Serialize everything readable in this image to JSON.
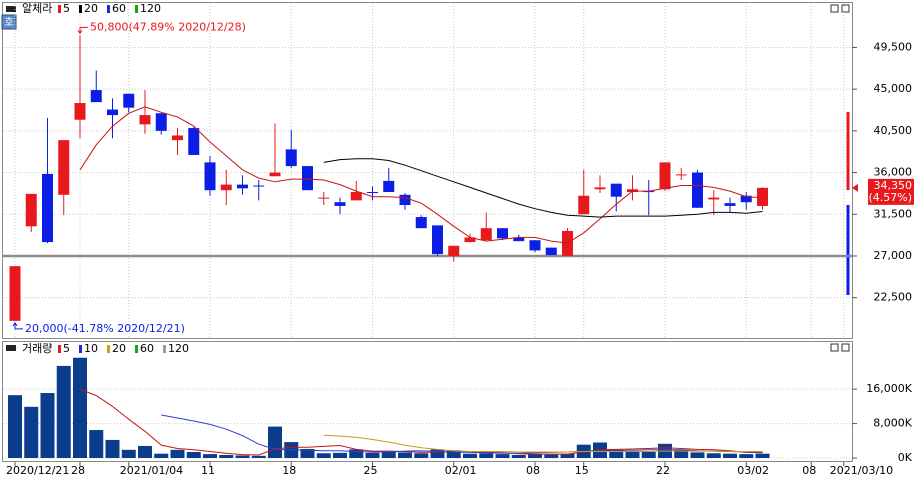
{
  "icon_label": "호",
  "chart_data": [
    {
      "type": "candlestick",
      "name": "알체라",
      "categories": [
        "2020/12/21",
        null,
        null,
        null,
        "28",
        null,
        null,
        "2021/01/04",
        null,
        null,
        null,
        null,
        "11",
        null,
        null,
        null,
        null,
        "18",
        null,
        null,
        null,
        null,
        "25",
        null,
        null,
        null,
        null,
        "02/01",
        null,
        null,
        null,
        null,
        "08",
        null,
        null,
        "15",
        null,
        null,
        null,
        null,
        "22",
        null,
        null,
        null,
        null,
        "03/02",
        null,
        null,
        null,
        "08",
        null,
        "2021/03/10"
      ],
      "open": [
        20000,
        30200,
        35850,
        33600,
        41700,
        44900,
        42800,
        44500,
        41200,
        42400,
        39500,
        40800,
        37100,
        34100,
        34700,
        34600,
        35600,
        38500,
        36700,
        33200,
        32800,
        33000,
        33900,
        35100,
        33600,
        31200,
        30300,
        27000,
        28500,
        28700,
        30000,
        29000,
        28700,
        27900,
        27000,
        31500,
        34200,
        34800,
        33900,
        34000,
        34200,
        35700,
        36000,
        33100,
        32700,
        33500,
        32400,
        null,
        null,
        null,
        null,
        null
      ],
      "high": [
        25900,
        33700,
        41900,
        39500,
        50800,
        47000,
        44000,
        44500,
        44900,
        42400,
        40800,
        40900,
        37800,
        36300,
        35700,
        35200,
        41300,
        40600,
        36700,
        33900,
        33300,
        35100,
        34500,
        36500,
        33800,
        31400,
        30300,
        28100,
        29400,
        31700,
        30000,
        29300,
        28700,
        27900,
        30000,
        36300,
        35700,
        34800,
        35700,
        35200,
        37100,
        36500,
        36300,
        34100,
        33300,
        33900,
        34400,
        null,
        null,
        null,
        null,
        null
      ],
      "low": [
        20000,
        29600,
        28400,
        31400,
        39700,
        43600,
        39700,
        42500,
        40200,
        40100,
        37900,
        37900,
        33500,
        32500,
        33600,
        33000,
        35600,
        36500,
        34100,
        32500,
        31500,
        33000,
        33000,
        33900,
        32000,
        30000,
        27000,
        26400,
        28500,
        28700,
        28700,
        28600,
        27400,
        27100,
        27000,
        31500,
        33800,
        31800,
        33000,
        31400,
        34000,
        35200,
        32200,
        31400,
        31700,
        32000,
        32000,
        null,
        null,
        null,
        null,
        null
      ],
      "close": [
        25900,
        33700,
        28500,
        39500,
        43500,
        43600,
        42200,
        43000,
        42200,
        40500,
        40000,
        37900,
        34100,
        34700,
        34300,
        34500,
        36000,
        36700,
        34100,
        33300,
        32400,
        33900,
        33800,
        33900,
        32500,
        30000,
        27200,
        28100,
        29000,
        30000,
        28900,
        28600,
        27600,
        27100,
        29700,
        33500,
        34400,
        33400,
        34200,
        33900,
        37100,
        35800,
        32200,
        33300,
        32400,
        32800,
        34350,
        null,
        null,
        null,
        null,
        null
      ],
      "up_color": "#e8191c",
      "down_color": "#0a1ee6",
      "legend": [
        {
          "name": "5",
          "color": "#e8191c"
        },
        {
          "name": "20",
          "color": "#000000"
        },
        {
          "name": "60",
          "color": "#1a2bd0"
        },
        {
          "name": "120",
          "color": "#19a319"
        }
      ],
      "ma_lines": [
        {
          "color": "#c81414",
          "values": [
            null,
            null,
            null,
            null,
            36300,
            39000,
            41000,
            42400,
            43100,
            42500,
            42000,
            41000,
            39300,
            37800,
            36300,
            35400,
            35000,
            35300,
            35300,
            35200,
            34700,
            34000,
            33400,
            33400,
            33300,
            32700,
            31500,
            30200,
            29000,
            28600,
            28800,
            29000,
            29000,
            28600,
            28400,
            29500,
            31000,
            32600,
            34000,
            34000,
            34300,
            34600,
            34600,
            34400,
            34000,
            33400,
            33300,
            null,
            null,
            null,
            null,
            null
          ]
        },
        {
          "color": "#000000",
          "values": [
            null,
            null,
            null,
            null,
            null,
            null,
            null,
            null,
            null,
            null,
            null,
            null,
            null,
            null,
            null,
            null,
            null,
            null,
            null,
            37100,
            37400,
            37500,
            37500,
            37300,
            36800,
            36200,
            35600,
            35000,
            34400,
            33800,
            33200,
            32600,
            32100,
            31700,
            31400,
            31300,
            31200,
            31300,
            31300,
            31300,
            31300,
            31400,
            31500,
            31700,
            31700,
            31600,
            31800,
            null,
            null,
            null,
            null,
            null
          ]
        }
      ],
      "reference_line": 27000,
      "ylim": [
        18150,
        54080
      ],
      "yticks": [
        {
          "value": 49500,
          "label": "49,500"
        },
        {
          "value": 45000,
          "label": "45,000"
        },
        {
          "value": 40500,
          "label": "40,500"
        },
        {
          "value": 36000,
          "label": "36,000"
        },
        {
          "value": 31500,
          "label": "31,500"
        },
        {
          "value": 27000,
          "label": "27,000"
        },
        {
          "value": 22500,
          "label": "22,500"
        }
      ],
      "annotations": [
        {
          "text": "50,800(47.89% 2020/12/28)",
          "value": 50800
        },
        {
          "text": "20,000(-41.78% 2020/12/21)",
          "value": 20000
        }
      ],
      "current_price": {
        "value": 34350,
        "label": "34,350",
        "change": "(4.57%)"
      }
    },
    {
      "type": "bar",
      "name": "거래량",
      "color": "#0b3d8c",
      "values": [
        14600,
        11900,
        15100,
        21400,
        23300,
        6500,
        4200,
        1900,
        2800,
        1000,
        1900,
        1400,
        900,
        700,
        600,
        500,
        7300,
        3700,
        2100,
        1100,
        1200,
        2000,
        1200,
        1600,
        1300,
        1100,
        2000,
        1800,
        1000,
        1100,
        900,
        700,
        1000,
        800,
        1000,
        3100,
        3600,
        1800,
        1500,
        1400,
        3300,
        1900,
        1300,
        1100,
        1000,
        900,
        1000,
        null,
        null,
        null,
        null,
        null
      ],
      "legend": [
        {
          "name": "5",
          "color": "#e8191c"
        },
        {
          "name": "10",
          "color": "#1a2bd0"
        },
        {
          "name": "20",
          "color": "#d4a017"
        },
        {
          "name": "60",
          "color": "#19a319"
        },
        {
          "name": "120",
          "color": "#9a9a9a"
        }
      ],
      "ma_lines": [
        {
          "color": "#c81414",
          "values": [
            null,
            null,
            null,
            null,
            16000,
            14500,
            12000,
            9000,
            6200,
            3000,
            2200,
            1900,
            1500,
            1100,
            800,
            700,
            2100,
            2500,
            2500,
            2700,
            2900,
            2000,
            1600,
            1600,
            1500,
            1300,
            1400,
            1500,
            1400,
            1300,
            1200,
            1000,
            900,
            900,
            900,
            1400,
            1900,
            2000,
            2100,
            2200,
            2400,
            2200,
            2000,
            1900,
            1700,
            1300,
            1200,
            null,
            null,
            null,
            null,
            null
          ]
        },
        {
          "color": "#3040d0",
          "values": [
            null,
            null,
            null,
            null,
            null,
            null,
            null,
            null,
            null,
            10000,
            9300,
            8600,
            7800,
            6700,
            5200,
            3200,
            2000,
            1900,
            1800,
            1700,
            1700,
            1500,
            1400,
            1400,
            1600,
            1700,
            1500,
            1400,
            1300,
            1200,
            1100,
            1100,
            1200,
            1300,
            1400,
            1600,
            1700,
            1800,
            1800,
            1900,
            1900,
            1900,
            1700,
            1600,
            1500,
            1400,
            1300,
            null,
            null,
            null,
            null,
            null
          ]
        },
        {
          "color": "#c89a20",
          "values": [
            null,
            null,
            null,
            null,
            null,
            null,
            null,
            null,
            null,
            null,
            null,
            null,
            null,
            null,
            null,
            null,
            null,
            null,
            null,
            5300,
            5100,
            4800,
            4300,
            3700,
            3000,
            2400,
            2000,
            1700,
            1500,
            1500,
            1500,
            1400,
            1400,
            1400,
            1400,
            1500,
            1500,
            1500,
            1500,
            1500,
            1600,
            1600,
            1600,
            1600,
            1500,
            1500,
            1500,
            null,
            null,
            null,
            null,
            null
          ]
        }
      ],
      "ylim": [
        0,
        25100
      ],
      "yticks": [
        {
          "value": 16000,
          "label": "16,000K"
        },
        {
          "value": 8000,
          "label": "8,000K"
        },
        {
          "value": 0,
          "label": "0K"
        }
      ]
    }
  ]
}
